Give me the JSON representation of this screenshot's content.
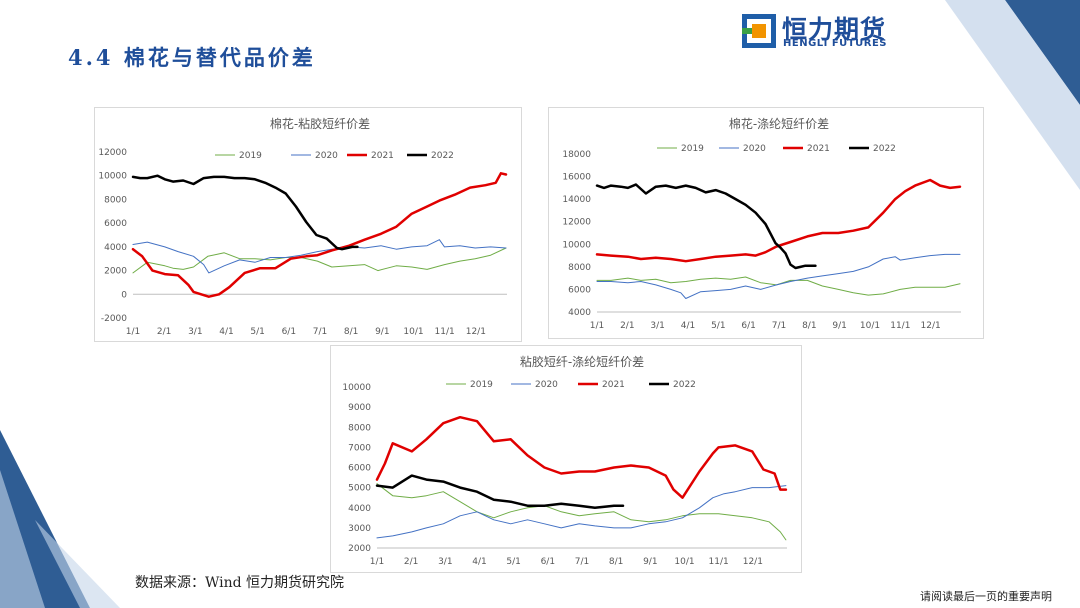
{
  "page": {
    "section_title": "4.4 棉花与替代品价差",
    "source_text": "数据来源：Wind 恒力期货研究院",
    "notice_text": "请阅读最后一页的重要声明",
    "logo": {
      "cn": "恒力期货",
      "en": "HENGLI FUTURES",
      "icon": "hengli-logo-icon"
    },
    "colors": {
      "title": "#1f4e9a",
      "accent_dark": "#2f5d94",
      "accent_light": "#c5d6ea"
    }
  },
  "chart_data": [
    {
      "type": "line",
      "title": "棉花-粘胶短纤价差",
      "xlabel": "",
      "ylabel": "",
      "x_ticks": [
        "1/1",
        "2/1",
        "3/1",
        "4/1",
        "5/1",
        "6/1",
        "7/1",
        "8/1",
        "9/1",
        "10/1",
        "11/1",
        "12/1"
      ],
      "y_ticks": [
        "-2000",
        "0",
        "2000",
        "4000",
        "6000",
        "8000",
        "10000",
        "12000"
      ],
      "ylim": [
        -2000,
        12000
      ],
      "legend_position": "top",
      "series": [
        {
          "name": "2019",
          "color": "#70ad47",
          "width": 1,
          "x": [
            1,
            15,
            32,
            40,
            50,
            60,
            74,
            90,
            105,
            120,
            135,
            150,
            165,
            181,
            195,
            212,
            227,
            240,
            258,
            273,
            288,
            305,
            320,
            335,
            350,
            365
          ],
          "y": [
            1800,
            2700,
            2400,
            2200,
            2100,
            2300,
            3200,
            3500,
            3000,
            3000,
            2900,
            3100,
            3100,
            2800,
            2300,
            2400,
            2500,
            2000,
            2400,
            2300,
            2100,
            2500,
            2800,
            3000,
            3300,
            3900
          ]
        },
        {
          "name": "2020",
          "color": "#4472c4",
          "width": 1,
          "x": [
            1,
            15,
            32,
            45,
            60,
            70,
            75,
            90,
            105,
            120,
            135,
            150,
            165,
            181,
            195,
            212,
            227,
            243,
            258,
            273,
            288,
            300,
            305,
            320,
            335,
            350,
            365
          ],
          "y": [
            4200,
            4400,
            4000,
            3600,
            3200,
            2500,
            1800,
            2400,
            2900,
            2700,
            3100,
            3100,
            3300,
            3600,
            3800,
            4000,
            3900,
            4100,
            3800,
            4000,
            4100,
            4600,
            4000,
            4100,
            3900,
            4000,
            3900
          ]
        },
        {
          "name": "2021",
          "color": "#e00000",
          "width": 2.5,
          "x": [
            1,
            10,
            20,
            32,
            45,
            55,
            60,
            75,
            85,
            95,
            110,
            125,
            140,
            155,
            170,
            181,
            195,
            212,
            227,
            243,
            258,
            273,
            288,
            300,
            315,
            330,
            345,
            355,
            360,
            365
          ],
          "y": [
            3800,
            3200,
            2000,
            1700,
            1600,
            800,
            200,
            -200,
            0,
            600,
            1800,
            2200,
            2200,
            3000,
            3200,
            3300,
            3700,
            4100,
            4600,
            5100,
            5700,
            6800,
            7400,
            7900,
            8400,
            9000,
            9200,
            9400,
            10200,
            10100
          ]
        },
        {
          "name": "2022",
          "color": "#000000",
          "width": 2.5,
          "x": [
            1,
            8,
            15,
            25,
            32,
            40,
            50,
            60,
            70,
            80,
            90,
            100,
            110,
            120,
            130,
            140,
            150,
            160,
            170,
            180,
            190,
            200,
            205,
            210,
            215,
            220
          ],
          "y": [
            9900,
            9800,
            9800,
            10000,
            9700,
            9500,
            9600,
            9300,
            9800,
            9900,
            9900,
            9800,
            9800,
            9700,
            9400,
            9000,
            8500,
            7400,
            6100,
            5000,
            4700,
            3900,
            3800,
            3900,
            4000,
            4000
          ]
        }
      ]
    },
    {
      "type": "line",
      "title": "棉花-涤纶短纤价差",
      "xlabel": "",
      "ylabel": "",
      "x_ticks": [
        "1/1",
        "2/1",
        "3/1",
        "4/1",
        "5/1",
        "6/1",
        "7/1",
        "8/1",
        "9/1",
        "10/1",
        "11/1",
        "12/1"
      ],
      "y_ticks": [
        "4000",
        "6000",
        "8000",
        "10000",
        "12000",
        "14000",
        "16000",
        "18000"
      ],
      "ylim": [
        4000,
        18000
      ],
      "legend_position": "top",
      "series": [
        {
          "name": "2019",
          "color": "#70ad47",
          "width": 1,
          "x": [
            1,
            15,
            32,
            45,
            60,
            75,
            90,
            105,
            120,
            135,
            150,
            165,
            181,
            195,
            212,
            227,
            243,
            258,
            273,
            288,
            305,
            320,
            335,
            350,
            365
          ],
          "y": [
            6800,
            6800,
            7000,
            6800,
            6900,
            6600,
            6700,
            6900,
            7000,
            6900,
            7100,
            6600,
            6400,
            6800,
            6800,
            6300,
            6000,
            5700,
            5500,
            5600,
            6000,
            6200,
            6200,
            6200,
            6500
          ]
        },
        {
          "name": "2020",
          "color": "#4472c4",
          "width": 1,
          "x": [
            1,
            15,
            32,
            45,
            60,
            75,
            85,
            90,
            105,
            120,
            135,
            150,
            165,
            181,
            195,
            212,
            227,
            243,
            258,
            273,
            288,
            300,
            305,
            320,
            335,
            350,
            365
          ],
          "y": [
            6700,
            6700,
            6600,
            6700,
            6400,
            6000,
            5700,
            5200,
            5800,
            5900,
            6000,
            6300,
            6000,
            6400,
            6700,
            7000,
            7200,
            7400,
            7600,
            8000,
            8700,
            8900,
            8600,
            8800,
            9000,
            9100,
            9100
          ]
        },
        {
          "name": "2021",
          "color": "#e00000",
          "width": 2.5,
          "x": [
            1,
            15,
            32,
            45,
            60,
            75,
            90,
            105,
            120,
            135,
            150,
            160,
            170,
            181,
            195,
            212,
            227,
            243,
            258,
            273,
            288,
            300,
            310,
            320,
            335,
            345,
            355,
            365
          ],
          "y": [
            9100,
            9000,
            8900,
            8700,
            8800,
            8700,
            8500,
            8700,
            8900,
            9000,
            9100,
            9000,
            9300,
            9800,
            10200,
            10700,
            11000,
            11000,
            11200,
            11500,
            12800,
            14000,
            14700,
            15200,
            15700,
            15200,
            15000,
            15100
          ]
        },
        {
          "name": "2022",
          "color": "#000000",
          "width": 2.5,
          "x": [
            1,
            8,
            15,
            25,
            32,
            40,
            45,
            50,
            60,
            70,
            80,
            90,
            100,
            110,
            120,
            130,
            140,
            150,
            160,
            170,
            180,
            185,
            190,
            195,
            200,
            205,
            210,
            220
          ],
          "y": [
            15200,
            15000,
            15200,
            15100,
            15000,
            15300,
            14900,
            14500,
            15100,
            15200,
            15000,
            15200,
            15000,
            14600,
            14800,
            14500,
            14000,
            13500,
            12800,
            11800,
            10100,
            9700,
            9200,
            8200,
            7900,
            8000,
            8100,
            8100
          ]
        }
      ]
    },
    {
      "type": "line",
      "title": "粘胶短纤-涤纶短纤价差",
      "xlabel": "",
      "ylabel": "",
      "x_ticks": [
        "1/1",
        "2/1",
        "3/1",
        "4/1",
        "5/1",
        "6/1",
        "7/1",
        "8/1",
        "9/1",
        "10/1",
        "11/1",
        "12/1"
      ],
      "y_ticks": [
        "2000",
        "3000",
        "4000",
        "5000",
        "6000",
        "7000",
        "8000",
        "9000",
        "10000"
      ],
      "ylim": [
        2000,
        10000
      ],
      "legend_position": "top",
      "series": [
        {
          "name": "2019",
          "color": "#70ad47",
          "width": 1,
          "x": [
            1,
            15,
            32,
            45,
            60,
            75,
            90,
            105,
            120,
            135,
            150,
            165,
            181,
            195,
            212,
            227,
            243,
            258,
            273,
            288,
            305,
            320,
            335,
            350,
            360,
            365
          ],
          "y": [
            5200,
            4600,
            4500,
            4600,
            4800,
            4300,
            3800,
            3500,
            3800,
            4000,
            4100,
            3800,
            3600,
            3700,
            3800,
            3400,
            3300,
            3400,
            3600,
            3700,
            3700,
            3600,
            3500,
            3300,
            2800,
            2400
          ]
        },
        {
          "name": "2020",
          "color": "#4472c4",
          "width": 1,
          "x": [
            1,
            15,
            32,
            45,
            60,
            75,
            90,
            105,
            120,
            135,
            150,
            165,
            181,
            195,
            212,
            227,
            243,
            258,
            273,
            288,
            300,
            310,
            320,
            335,
            350,
            365
          ],
          "y": [
            2500,
            2600,
            2800,
            3000,
            3200,
            3600,
            3800,
            3400,
            3200,
            3400,
            3200,
            3000,
            3200,
            3100,
            3000,
            3000,
            3200,
            3300,
            3500,
            4000,
            4500,
            4700,
            4800,
            5000,
            5000,
            5100
          ]
        },
        {
          "name": "2021",
          "color": "#e00000",
          "width": 2.5,
          "x": [
            1,
            8,
            15,
            32,
            45,
            60,
            75,
            90,
            105,
            120,
            135,
            150,
            165,
            181,
            195,
            212,
            227,
            243,
            258,
            265,
            273,
            288,
            300,
            305,
            320,
            335,
            345,
            355,
            360,
            365
          ],
          "y": [
            5400,
            6200,
            7200,
            6800,
            7400,
            8200,
            8500,
            8300,
            7300,
            7400,
            6600,
            6000,
            5700,
            5800,
            5800,
            6000,
            6100,
            6000,
            5600,
            4900,
            4500,
            5800,
            6700,
            7000,
            7100,
            6800,
            5900,
            5700,
            4900,
            4900
          ]
        },
        {
          "name": "2022",
          "color": "#000000",
          "width": 2.5,
          "x": [
            1,
            15,
            32,
            45,
            60,
            75,
            90,
            105,
            120,
            135,
            150,
            165,
            181,
            195,
            212,
            220
          ],
          "y": [
            5100,
            5000,
            5600,
            5400,
            5300,
            5000,
            4800,
            4400,
            4300,
            4100,
            4100,
            4200,
            4100,
            4000,
            4100,
            4100
          ]
        }
      ]
    }
  ]
}
